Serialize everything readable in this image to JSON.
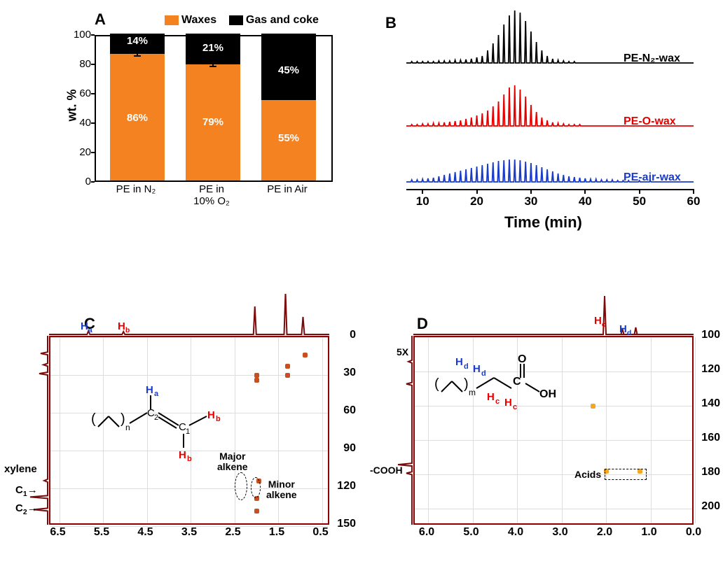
{
  "colors": {
    "waxes": "#f58220",
    "gas": "#000000",
    "traceN2": "#000000",
    "traceO": "#e60000",
    "traceAir": "#1a3cc8",
    "nmr": "#7a0b0b",
    "blue_label": "#1a3cc8",
    "red_label": "#e60000"
  },
  "panelA": {
    "label": "A",
    "ylabel": "wt. %",
    "ylim": [
      0,
      100
    ],
    "ytick_step": 20,
    "legend": {
      "waxes": "Waxes",
      "gas": "Gas and coke"
    },
    "categories": [
      "PE in N₂",
      "PE in\n10% O₂",
      "PE in Air"
    ],
    "waxes_pct": [
      86,
      79,
      55
    ],
    "gas_pct": [
      14,
      21,
      45
    ],
    "err": [
      1.5,
      2,
      0
    ]
  },
  "panelB": {
    "label": "B",
    "xlabel": "Time (min)",
    "xlim": [
      7,
      60
    ],
    "xticks": [
      10,
      20,
      30,
      40,
      50,
      60
    ],
    "traces": [
      {
        "name": "PE-N₂-wax",
        "color": "#000000",
        "baseline": 90,
        "peaks": [
          [
            8,
            2
          ],
          [
            9,
            2
          ],
          [
            10,
            2
          ],
          [
            11,
            2
          ],
          [
            12,
            2
          ],
          [
            13,
            3
          ],
          [
            14,
            3
          ],
          [
            15,
            3
          ],
          [
            16,
            4
          ],
          [
            17,
            4
          ],
          [
            18,
            5
          ],
          [
            19,
            6
          ],
          [
            20,
            8
          ],
          [
            21,
            10
          ],
          [
            22,
            18
          ],
          [
            23,
            28
          ],
          [
            24,
            40
          ],
          [
            25,
            55
          ],
          [
            26,
            68
          ],
          [
            27,
            75
          ],
          [
            28,
            72
          ],
          [
            29,
            60
          ],
          [
            30,
            45
          ],
          [
            31,
            30
          ],
          [
            32,
            18
          ],
          [
            33,
            10
          ],
          [
            34,
            6
          ],
          [
            35,
            4
          ],
          [
            36,
            3
          ],
          [
            37,
            2
          ],
          [
            38,
            2
          ]
        ]
      },
      {
        "name": "PE-O-wax",
        "color": "#e60000",
        "baseline": 180,
        "peaks": [
          [
            8,
            2
          ],
          [
            9,
            2
          ],
          [
            10,
            3
          ],
          [
            11,
            3
          ],
          [
            12,
            4
          ],
          [
            13,
            4
          ],
          [
            14,
            5
          ],
          [
            15,
            6
          ],
          [
            16,
            7
          ],
          [
            17,
            8
          ],
          [
            18,
            10
          ],
          [
            19,
            12
          ],
          [
            20,
            15
          ],
          [
            21,
            18
          ],
          [
            22,
            22
          ],
          [
            23,
            28
          ],
          [
            24,
            35
          ],
          [
            25,
            45
          ],
          [
            26,
            55
          ],
          [
            27,
            58
          ],
          [
            28,
            52
          ],
          [
            29,
            42
          ],
          [
            30,
            30
          ],
          [
            31,
            20
          ],
          [
            32,
            12
          ],
          [
            33,
            8
          ],
          [
            34,
            5
          ],
          [
            35,
            4
          ],
          [
            36,
            3
          ],
          [
            37,
            2
          ],
          [
            38,
            2
          ],
          [
            39,
            2
          ]
        ]
      },
      {
        "name": "PE-air-wax",
        "color": "#1a3cc8",
        "baseline": 260,
        "peaks": [
          [
            8,
            3
          ],
          [
            9,
            3
          ],
          [
            10,
            4
          ],
          [
            11,
            5
          ],
          [
            12,
            6
          ],
          [
            13,
            8
          ],
          [
            14,
            10
          ],
          [
            15,
            12
          ],
          [
            16,
            14
          ],
          [
            17,
            16
          ],
          [
            18,
            18
          ],
          [
            19,
            20
          ],
          [
            20,
            22
          ],
          [
            21,
            24
          ],
          [
            22,
            26
          ],
          [
            23,
            28
          ],
          [
            24,
            30
          ],
          [
            25,
            31
          ],
          [
            26,
            32
          ],
          [
            27,
            32
          ],
          [
            28,
            31
          ],
          [
            29,
            29
          ],
          [
            30,
            27
          ],
          [
            31,
            24
          ],
          [
            32,
            21
          ],
          [
            33,
            18
          ],
          [
            34,
            15
          ],
          [
            35,
            12
          ],
          [
            36,
            10
          ],
          [
            37,
            8
          ],
          [
            38,
            7
          ],
          [
            39,
            6
          ],
          [
            40,
            5
          ],
          [
            41,
            4
          ],
          [
            42,
            4
          ],
          [
            43,
            3
          ],
          [
            44,
            3
          ],
          [
            45,
            3
          ],
          [
            46,
            2
          ],
          [
            47,
            2
          ],
          [
            48,
            2
          ],
          [
            50,
            2
          ],
          [
            52,
            2
          ]
        ]
      }
    ]
  },
  "panelC": {
    "label": "C",
    "xlim": [
      6.7,
      0.3
    ],
    "ylim": [
      0,
      150
    ],
    "xticks": [
      6.5,
      5.5,
      4.5,
      3.5,
      2.5,
      1.5,
      0.5
    ],
    "yticks": [
      0,
      30,
      60,
      90,
      120,
      150
    ],
    "top_peaks": [
      [
        5.8,
        5
      ],
      [
        5.0,
        4
      ],
      [
        2.0,
        40
      ],
      [
        1.3,
        60
      ],
      [
        0.9,
        25
      ]
    ],
    "left_peaks": [
      [
        14,
        10
      ],
      [
        23,
        6
      ],
      [
        30,
        12
      ],
      [
        115,
        5
      ],
      [
        128,
        25
      ],
      [
        138,
        20
      ]
    ],
    "cross": [
      [
        2.0,
        30,
        "#c94f1e"
      ],
      [
        1.3,
        30,
        "#c94f1e"
      ],
      [
        0.9,
        14,
        "#c94f1e"
      ],
      [
        1.3,
        23,
        "#c94f1e"
      ],
      [
        2.0,
        34,
        "#c94f1e"
      ],
      [
        2.0,
        128,
        "#c94f1e"
      ],
      [
        2.0,
        138,
        "#c94f1e"
      ],
      [
        1.95,
        114,
        "#c94f1e"
      ]
    ],
    "annot": {
      "Ha": "H",
      "Ha_sub": "a",
      "Hb": "H",
      "Hb_sub": "b",
      "C1": "C",
      "C1_sub": "1",
      "C2": "C",
      "C2_sub": "2",
      "xylene": "xylene",
      "major": "Major\nalkene",
      "minor": "Minor\nalkene"
    }
  },
  "panelD": {
    "label": "D",
    "xlim": [
      6.3,
      0.0
    ],
    "ylim": [
      100,
      210
    ],
    "xticks": [
      6.0,
      5.0,
      4.0,
      3.0,
      2.0,
      1.0,
      0.0
    ],
    "yticks": [
      100,
      120,
      140,
      160,
      180,
      200
    ],
    "top_peaks": [
      [
        2.0,
        55
      ],
      [
        1.3,
        10
      ],
      [
        1.6,
        8
      ]
    ],
    "left_peaks": [
      [
        115,
        5
      ],
      [
        128,
        8
      ],
      [
        175,
        20
      ],
      [
        180,
        8
      ]
    ],
    "cross": [
      [
        2.0,
        178,
        "#f5a623"
      ],
      [
        1.25,
        178,
        "#f5a623"
      ],
      [
        2.3,
        140,
        "#f5a623"
      ]
    ],
    "annot": {
      "Hc": "H",
      "Hc_sub": "c",
      "Hd": "H",
      "Hd_sub": "d",
      "acids": "Acids",
      "cooh": "-COOH",
      "x5": "5X"
    }
  }
}
